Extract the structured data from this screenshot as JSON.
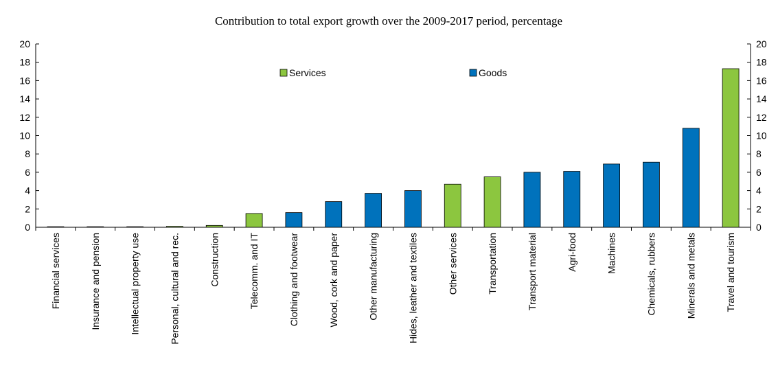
{
  "chart_data": {
    "type": "bar",
    "title": "Contribution to total export growth over the 2009-2017 period, percentage",
    "xlabel": "",
    "ylabel": "",
    "ylim": [
      0,
      20
    ],
    "yticks": [
      0,
      2,
      4,
      6,
      8,
      10,
      12,
      14,
      16,
      18,
      20
    ],
    "grid": false,
    "legend_placement": "top-center",
    "categories": [
      "Financial services",
      "Insurance and pension",
      "Intellectual property use",
      "Personal, cultural and rec.",
      "Construction",
      "Telecomm. and IT",
      "Clothing and footwear",
      "Wood, cork and paper",
      "Other manufacturing",
      "Hides, leather and textiles",
      "Other services",
      "Transportation",
      "Transport material",
      "Agri-food",
      "Machines",
      "Chemicals, rubbers",
      "Minerals and metals",
      "Travel and tourism"
    ],
    "values": [
      0.05,
      0.05,
      0.05,
      0.1,
      0.2,
      1.5,
      1.6,
      2.8,
      3.7,
      4.0,
      4.7,
      5.5,
      6.0,
      6.1,
      6.9,
      7.1,
      10.8,
      17.3
    ],
    "groups": [
      "Services",
      "Services",
      "Services",
      "Services",
      "Services",
      "Services",
      "Goods",
      "Goods",
      "Goods",
      "Goods",
      "Services",
      "Services",
      "Goods",
      "Goods",
      "Goods",
      "Goods",
      "Goods",
      "Services"
    ],
    "series": [
      {
        "name": "Services",
        "color": "#8cc63f"
      },
      {
        "name": "Goods",
        "color": "#0072bc"
      }
    ]
  }
}
